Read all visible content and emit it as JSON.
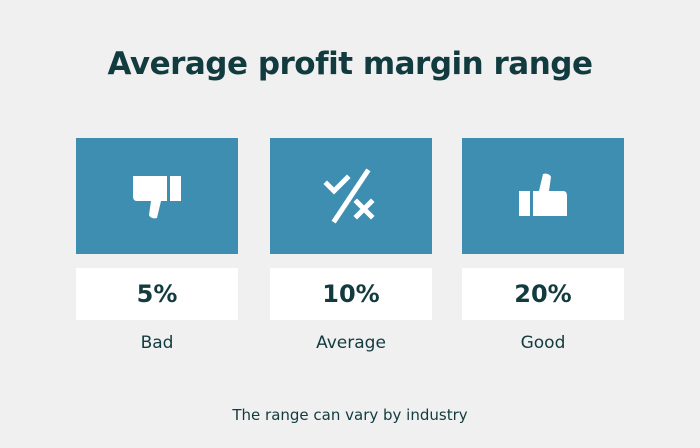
{
  "title": "Average profit margin range",
  "cards": [
    {
      "icon": "thumbs-down-icon",
      "value": "5%",
      "label": "Bad"
    },
    {
      "icon": "percent-icon",
      "value": "10%",
      "label": "Average"
    },
    {
      "icon": "thumbs-up-icon",
      "value": "20%",
      "label": "Good"
    }
  ],
  "footnote": "The range can vary by industry",
  "colors": {
    "background": "#f0f0f0",
    "card_accent": "#3e8eb2",
    "text": "#123b3f",
    "value_box": "#ffffff"
  }
}
